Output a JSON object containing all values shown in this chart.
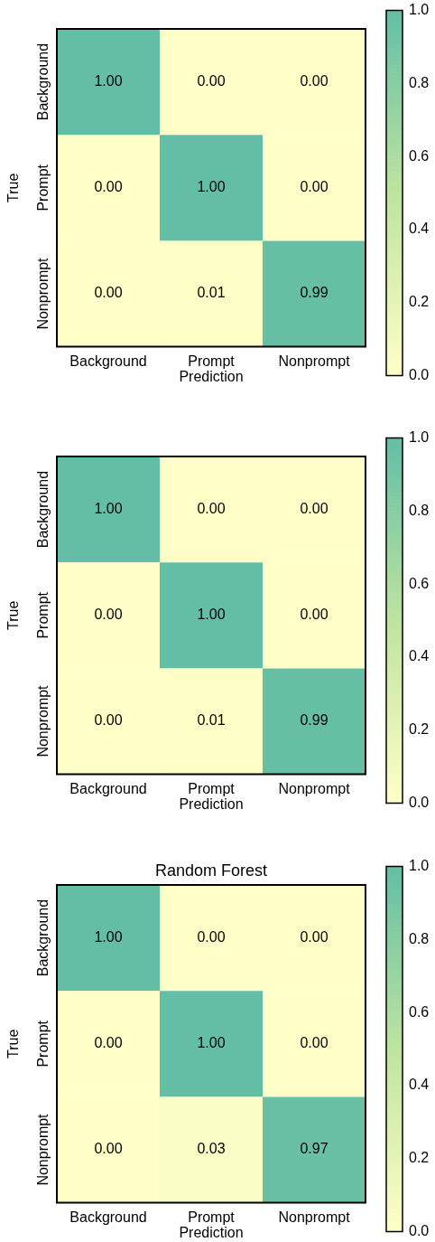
{
  "chart_data": [
    {
      "type": "heatmap",
      "xlabel": "Prediction",
      "ylabel": "True",
      "categories": [
        "Background",
        "Prompt",
        "Nonprompt"
      ],
      "y_categories": [
        "Background",
        "Prompt",
        "Nonprompt"
      ],
      "cells": [
        [
          1.0,
          0.0,
          0.0
        ],
        [
          0.0,
          1.0,
          0.0
        ],
        [
          0.0,
          0.01,
          0.99
        ]
      ],
      "cell_labels": [
        [
          "1.00",
          "0.00",
          "0.00"
        ],
        [
          "0.00",
          "1.00",
          "0.00"
        ],
        [
          "0.00",
          "0.01",
          "0.99"
        ]
      ],
      "clim": [
        0,
        1
      ],
      "cticks": [
        {
          "value": 0,
          "label": "0.0"
        },
        {
          "value": 0.2,
          "label": "0.2"
        },
        {
          "value": 0.4,
          "label": "0.4"
        },
        {
          "value": 0.6,
          "label": "0.6"
        },
        {
          "value": 0.8,
          "label": "0.8"
        },
        {
          "value": 1,
          "label": "1.0"
        }
      ]
    },
    {
      "type": "heatmap",
      "xlabel": "Prediction",
      "ylabel": "True",
      "categories": [
        "Background",
        "Prompt",
        "Nonprompt"
      ],
      "y_categories": [
        "Background",
        "Prompt",
        "Nonprompt"
      ],
      "cells": [
        [
          1.0,
          0.0,
          0.0
        ],
        [
          0.0,
          1.0,
          0.0
        ],
        [
          0.0,
          0.01,
          0.99
        ]
      ],
      "cell_labels": [
        [
          "1.00",
          "0.00",
          "0.00"
        ],
        [
          "0.00",
          "1.00",
          "0.00"
        ],
        [
          "0.00",
          "0.01",
          "0.99"
        ]
      ],
      "clim": [
        0,
        1
      ],
      "cticks": [
        {
          "value": 0,
          "label": "0.0"
        },
        {
          "value": 0.2,
          "label": "0.2"
        },
        {
          "value": 0.4,
          "label": "0.4"
        },
        {
          "value": 0.6,
          "label": "0.6"
        },
        {
          "value": 0.8,
          "label": "0.8"
        },
        {
          "value": 1,
          "label": "1.0"
        }
      ]
    },
    {
      "type": "heatmap",
      "title": "Random Forest",
      "xlabel": "Prediction",
      "ylabel": "True",
      "categories": [
        "Background",
        "Prompt",
        "Nonprompt"
      ],
      "y_categories": [
        "Background",
        "Prompt",
        "Nonprompt"
      ],
      "cells": [
        [
          1.0,
          0.0,
          0.0
        ],
        [
          0.0,
          1.0,
          0.0
        ],
        [
          0.0,
          0.03,
          0.97
        ]
      ],
      "cell_labels": [
        [
          "1.00",
          "0.00",
          "0.00"
        ],
        [
          "0.00",
          "1.00",
          "0.00"
        ],
        [
          "0.00",
          "0.03",
          "0.97"
        ]
      ],
      "clim": [
        0,
        1
      ],
      "cticks": [
        {
          "value": 0,
          "label": "0.0"
        },
        {
          "value": 0.2,
          "label": "0.2"
        },
        {
          "value": 0.4,
          "label": "0.4"
        },
        {
          "value": 0.6,
          "label": "0.6"
        },
        {
          "value": 0.8,
          "label": "0.8"
        },
        {
          "value": 1,
          "label": "1.0"
        }
      ]
    }
  ]
}
